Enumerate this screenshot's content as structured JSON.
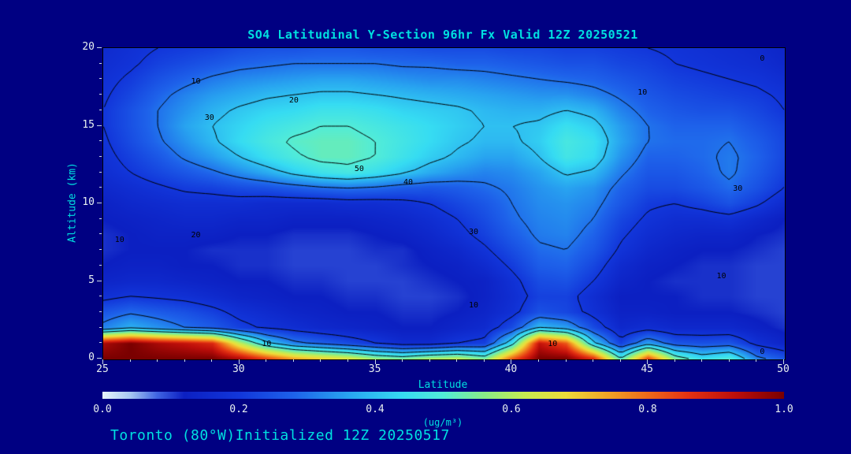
{
  "theme": {
    "background": "#000082",
    "accent_cyan": "#00e0e0",
    "tick_text": "#e8f0f0",
    "contour_color": "#000000",
    "frame_color": "#000000"
  },
  "title": {
    "text": "SO4 Latitudinal Y-Section 96hr  Fx Valid 12Z 20250521"
  },
  "footer": {
    "text": "Toronto (80°W)Initialized 12Z 20250517"
  },
  "chart_data": {
    "type": "heatmap",
    "subtype": "filled-contour latitude-altitude cross-section with overlaid line contours",
    "title": "SO4 Latitudinal Y-Section 96hr  Fx Valid 12Z 20250521",
    "xlabel": "Latitude",
    "ylabel": "Altitude (km)",
    "xlim": [
      25,
      50
    ],
    "ylim": [
      0,
      20
    ],
    "x_ticks": [
      {
        "label": "25",
        "value": 25
      },
      {
        "label": "30",
        "value": 30
      },
      {
        "label": "35",
        "value": 35
      },
      {
        "label": "40",
        "value": 40
      },
      {
        "label": "45",
        "value": 45
      },
      {
        "label": "50",
        "value": 50
      }
    ],
    "x_minor_step": 1,
    "y_ticks": [
      {
        "label": "0",
        "value": 0
      },
      {
        "label": "5",
        "value": 5
      },
      {
        "label": "10",
        "value": 10
      },
      {
        "label": "15",
        "value": 15
      },
      {
        "label": "20",
        "value": 20
      }
    ],
    "y_minor_step": 1,
    "colorbar": {
      "min": 0.0,
      "max": 1.0,
      "units": "(ug/m³)",
      "ticks": [
        {
          "label": "0.0",
          "value": 0.0
        },
        {
          "label": "0.2",
          "value": 0.2
        },
        {
          "label": "0.4",
          "value": 0.4
        },
        {
          "label": "0.6",
          "value": 0.6
        },
        {
          "label": "0.8",
          "value": 0.8
        },
        {
          "label": "1.0",
          "value": 1.0
        }
      ]
    },
    "colormap": [
      [
        0.0,
        "#e8f6fc"
      ],
      [
        0.04,
        "#a8c8f2"
      ],
      [
        0.08,
        "#4064e2"
      ],
      [
        0.12,
        "#0c20c2"
      ],
      [
        0.2,
        "#1236da"
      ],
      [
        0.28,
        "#1e62ea"
      ],
      [
        0.36,
        "#28a4f0"
      ],
      [
        0.44,
        "#36dcf2"
      ],
      [
        0.5,
        "#52ecd8"
      ],
      [
        0.56,
        "#88ec88"
      ],
      [
        0.62,
        "#c8ec50"
      ],
      [
        0.68,
        "#eedc3a"
      ],
      [
        0.74,
        "#f2a626"
      ],
      [
        0.8,
        "#ee6a1a"
      ],
      [
        0.86,
        "#e43212"
      ],
      [
        0.93,
        "#bc0e0a"
      ],
      [
        1.0,
        "#7a0000"
      ]
    ],
    "contour_levels": [
      0.1,
      0.2,
      0.3,
      0.4,
      0.5
    ],
    "contour_labels": [
      {
        "lat": 28.4,
        "alt": 17.8,
        "text": "10"
      },
      {
        "lat": 32.0,
        "alt": 16.6,
        "text": "20"
      },
      {
        "lat": 28.9,
        "alt": 15.5,
        "text": "30"
      },
      {
        "lat": 36.2,
        "alt": 11.3,
        "text": "40"
      },
      {
        "lat": 34.4,
        "alt": 12.2,
        "text": "50"
      },
      {
        "lat": 44.8,
        "alt": 17.1,
        "text": "10"
      },
      {
        "lat": 48.3,
        "alt": 10.9,
        "text": "30"
      },
      {
        "lat": 25.6,
        "alt": 7.6,
        "text": "10"
      },
      {
        "lat": 28.4,
        "alt": 7.9,
        "text": "20"
      },
      {
        "lat": 38.6,
        "alt": 8.1,
        "text": "30"
      },
      {
        "lat": 38.6,
        "alt": 3.4,
        "text": "10"
      },
      {
        "lat": 47.7,
        "alt": 5.3,
        "text": "10"
      },
      {
        "lat": 31.0,
        "alt": 0.9,
        "text": "10"
      },
      {
        "lat": 41.5,
        "alt": 0.9,
        "text": "10"
      },
      {
        "lat": 49.2,
        "alt": 19.3,
        "text": "0"
      },
      {
        "lat": 49.2,
        "alt": 0.4,
        "text": "0"
      }
    ],
    "grid": {
      "lats": [
        25,
        26,
        27,
        28,
        29,
        30,
        31,
        32,
        33,
        34,
        35,
        36,
        37,
        38,
        39,
        40,
        41,
        42,
        43,
        44,
        45,
        46,
        47,
        48,
        49,
        50
      ],
      "alts": [
        0,
        1,
        2,
        3,
        4,
        5,
        6,
        7,
        8,
        9,
        10,
        11,
        12,
        13,
        14,
        15,
        16,
        17,
        18,
        19,
        20
      ],
      "values": [
        [
          1.0,
          1.0,
          1.0,
          1.0,
          1.0,
          0.95,
          0.85,
          0.75,
          0.7,
          0.66,
          0.58,
          0.55,
          0.6,
          0.62,
          0.55,
          0.82,
          1.0,
          1.0,
          0.88,
          0.5,
          0.85,
          0.55,
          0.45,
          0.5,
          0.32,
          0.26
        ],
        [
          0.95,
          1.0,
          0.95,
          0.92,
          0.88,
          0.62,
          0.42,
          0.32,
          0.28,
          0.24,
          0.2,
          0.16,
          0.16,
          0.2,
          0.22,
          0.45,
          0.92,
          0.82,
          0.42,
          0.22,
          0.36,
          0.26,
          0.25,
          0.26,
          0.18,
          0.14
        ],
        [
          0.32,
          0.38,
          0.34,
          0.3,
          0.27,
          0.22,
          0.19,
          0.17,
          0.15,
          0.14,
          0.13,
          0.12,
          0.12,
          0.14,
          0.16,
          0.24,
          0.4,
          0.36,
          0.24,
          0.15,
          0.17,
          0.15,
          0.15,
          0.15,
          0.13,
          0.11
        ],
        [
          0.26,
          0.29,
          0.27,
          0.25,
          0.22,
          0.18,
          0.16,
          0.14,
          0.13,
          0.12,
          0.12,
          0.11,
          0.11,
          0.12,
          0.14,
          0.18,
          0.25,
          0.23,
          0.18,
          0.13,
          0.13,
          0.12,
          0.12,
          0.12,
          0.11,
          0.1
        ],
        [
          0.18,
          0.2,
          0.19,
          0.18,
          0.16,
          0.14,
          0.13,
          0.12,
          0.12,
          0.11,
          0.11,
          0.1,
          0.1,
          0.11,
          0.13,
          0.17,
          0.22,
          0.22,
          0.17,
          0.12,
          0.12,
          0.12,
          0.11,
          0.11,
          0.1,
          0.1
        ],
        [
          0.14,
          0.15,
          0.15,
          0.14,
          0.13,
          0.12,
          0.12,
          0.11,
          0.11,
          0.1,
          0.1,
          0.1,
          0.11,
          0.12,
          0.13,
          0.18,
          0.24,
          0.25,
          0.2,
          0.14,
          0.12,
          0.11,
          0.11,
          0.11,
          0.1,
          0.1
        ],
        [
          0.12,
          0.13,
          0.13,
          0.12,
          0.12,
          0.11,
          0.11,
          0.1,
          0.1,
          0.1,
          0.1,
          0.11,
          0.12,
          0.13,
          0.16,
          0.21,
          0.27,
          0.28,
          0.23,
          0.16,
          0.13,
          0.12,
          0.11,
          0.11,
          0.1,
          0.1
        ],
        [
          0.11,
          0.12,
          0.12,
          0.12,
          0.11,
          0.11,
          0.11,
          0.1,
          0.1,
          0.1,
          0.11,
          0.11,
          0.13,
          0.15,
          0.19,
          0.24,
          0.29,
          0.3,
          0.26,
          0.19,
          0.15,
          0.13,
          0.12,
          0.12,
          0.11,
          0.1
        ],
        [
          0.11,
          0.12,
          0.13,
          0.13,
          0.13,
          0.12,
          0.12,
          0.11,
          0.11,
          0.11,
          0.12,
          0.13,
          0.15,
          0.18,
          0.22,
          0.27,
          0.31,
          0.32,
          0.28,
          0.21,
          0.17,
          0.15,
          0.14,
          0.14,
          0.12,
          0.11
        ],
        [
          0.12,
          0.13,
          0.14,
          0.15,
          0.15,
          0.14,
          0.14,
          0.13,
          0.13,
          0.13,
          0.14,
          0.15,
          0.17,
          0.2,
          0.24,
          0.29,
          0.32,
          0.33,
          0.3,
          0.23,
          0.19,
          0.17,
          0.17,
          0.18,
          0.15,
          0.12
        ],
        [
          0.13,
          0.15,
          0.16,
          0.17,
          0.17,
          0.17,
          0.16,
          0.16,
          0.16,
          0.17,
          0.17,
          0.18,
          0.2,
          0.23,
          0.26,
          0.3,
          0.33,
          0.34,
          0.32,
          0.26,
          0.21,
          0.2,
          0.22,
          0.25,
          0.21,
          0.16
        ],
        [
          0.15,
          0.17,
          0.19,
          0.21,
          0.22,
          0.24,
          0.25,
          0.27,
          0.29,
          0.3,
          0.29,
          0.27,
          0.26,
          0.27,
          0.29,
          0.31,
          0.34,
          0.36,
          0.34,
          0.28,
          0.24,
          0.24,
          0.26,
          0.29,
          0.25,
          0.2
        ],
        [
          0.17,
          0.2,
          0.23,
          0.26,
          0.29,
          0.33,
          0.37,
          0.42,
          0.46,
          0.48,
          0.45,
          0.41,
          0.37,
          0.34,
          0.32,
          0.33,
          0.36,
          0.41,
          0.39,
          0.31,
          0.26,
          0.26,
          0.28,
          0.31,
          0.27,
          0.22
        ],
        [
          0.18,
          0.22,
          0.26,
          0.31,
          0.35,
          0.4,
          0.45,
          0.49,
          0.52,
          0.52,
          0.5,
          0.46,
          0.42,
          0.39,
          0.36,
          0.36,
          0.4,
          0.47,
          0.44,
          0.34,
          0.28,
          0.28,
          0.29,
          0.31,
          0.28,
          0.23
        ],
        [
          0.19,
          0.24,
          0.29,
          0.34,
          0.39,
          0.44,
          0.48,
          0.51,
          0.52,
          0.52,
          0.5,
          0.47,
          0.44,
          0.41,
          0.39,
          0.39,
          0.42,
          0.48,
          0.45,
          0.36,
          0.3,
          0.29,
          0.29,
          0.3,
          0.27,
          0.23
        ],
        [
          0.2,
          0.25,
          0.3,
          0.36,
          0.4,
          0.43,
          0.46,
          0.48,
          0.5,
          0.5,
          0.48,
          0.46,
          0.44,
          0.42,
          0.4,
          0.4,
          0.41,
          0.45,
          0.42,
          0.35,
          0.3,
          0.28,
          0.28,
          0.28,
          0.25,
          0.22
        ],
        [
          0.2,
          0.25,
          0.3,
          0.34,
          0.38,
          0.41,
          0.43,
          0.44,
          0.46,
          0.46,
          0.45,
          0.43,
          0.42,
          0.41,
          0.39,
          0.38,
          0.38,
          0.4,
          0.38,
          0.32,
          0.28,
          0.26,
          0.25,
          0.25,
          0.23,
          0.2
        ],
        [
          0.19,
          0.23,
          0.28,
          0.32,
          0.35,
          0.37,
          0.39,
          0.4,
          0.41,
          0.41,
          0.4,
          0.39,
          0.38,
          0.37,
          0.36,
          0.35,
          0.34,
          0.34,
          0.32,
          0.29,
          0.26,
          0.24,
          0.23,
          0.22,
          0.21,
          0.19
        ],
        [
          0.18,
          0.21,
          0.25,
          0.28,
          0.31,
          0.33,
          0.34,
          0.35,
          0.36,
          0.36,
          0.35,
          0.34,
          0.33,
          0.33,
          0.32,
          0.31,
          0.3,
          0.29,
          0.28,
          0.26,
          0.24,
          0.22,
          0.21,
          0.2,
          0.19,
          0.17
        ],
        [
          0.17,
          0.19,
          0.22,
          0.24,
          0.26,
          0.28,
          0.29,
          0.3,
          0.3,
          0.3,
          0.3,
          0.29,
          0.29,
          0.28,
          0.28,
          0.27,
          0.26,
          0.25,
          0.25,
          0.23,
          0.22,
          0.2,
          0.19,
          0.18,
          0.17,
          0.15
        ],
        [
          0.16,
          0.18,
          0.2,
          0.21,
          0.22,
          0.24,
          0.25,
          0.25,
          0.26,
          0.26,
          0.25,
          0.25,
          0.24,
          0.24,
          0.24,
          0.23,
          0.23,
          0.22,
          0.22,
          0.21,
          0.2,
          0.19,
          0.18,
          0.17,
          0.16,
          0.14
        ]
      ]
    }
  }
}
